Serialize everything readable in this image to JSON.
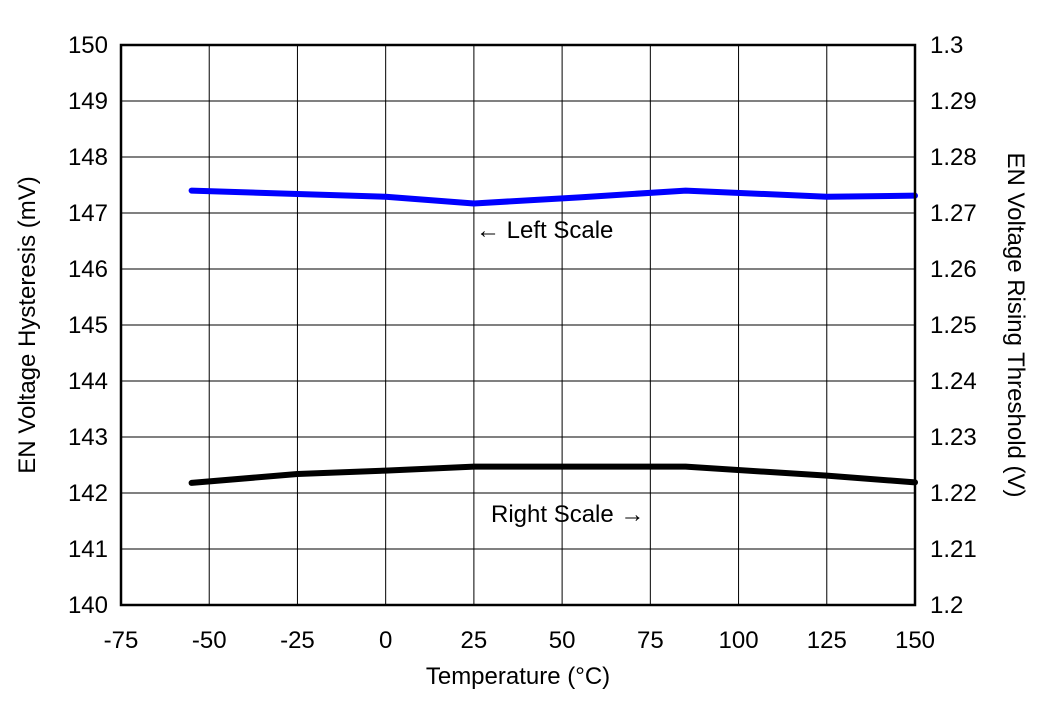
{
  "chart_data": {
    "type": "line",
    "xlabel": "Temperature (°C)",
    "ylabel": "EN Voltage Hysteresis (mV)",
    "y2label": "EN Voltage Rising Threshold (V)",
    "xlim": [
      -75,
      150
    ],
    "ylim": [
      140,
      150
    ],
    "y2lim": [
      1.2,
      1.3
    ],
    "xticks": [
      "-75",
      "-50",
      "-25",
      "0",
      "25",
      "50",
      "75",
      "100",
      "125",
      "150"
    ],
    "yticks": [
      "140",
      "141",
      "142",
      "143",
      "144",
      "145",
      "146",
      "147",
      "148",
      "149",
      "150"
    ],
    "y2ticks": [
      "1.2",
      "1.21",
      "1.22",
      "1.23",
      "1.24",
      "1.25",
      "1.26",
      "1.27",
      "1.28",
      "1.29",
      "1.3"
    ],
    "grid": true,
    "series": [
      {
        "axis": "left",
        "color": "#0000ff",
        "x": [
          -55,
          -25,
          0,
          25,
          55,
          85,
          125,
          150
        ],
        "y": [
          147.4,
          147.34,
          147.29,
          147.17,
          147.28,
          147.4,
          147.29,
          147.31
        ]
      },
      {
        "axis": "right",
        "color": "#000000",
        "x": [
          -55,
          -25,
          0,
          25,
          55,
          85,
          125,
          150
        ],
        "y": [
          1.2218,
          1.2234,
          1.224,
          1.2247,
          1.2247,
          1.2247,
          1.2231,
          1.2219
        ]
      }
    ],
    "annotations": [
      {
        "text": "Left Scale",
        "arrow": "left"
      },
      {
        "text": "Right Scale",
        "arrow": "right"
      }
    ]
  }
}
